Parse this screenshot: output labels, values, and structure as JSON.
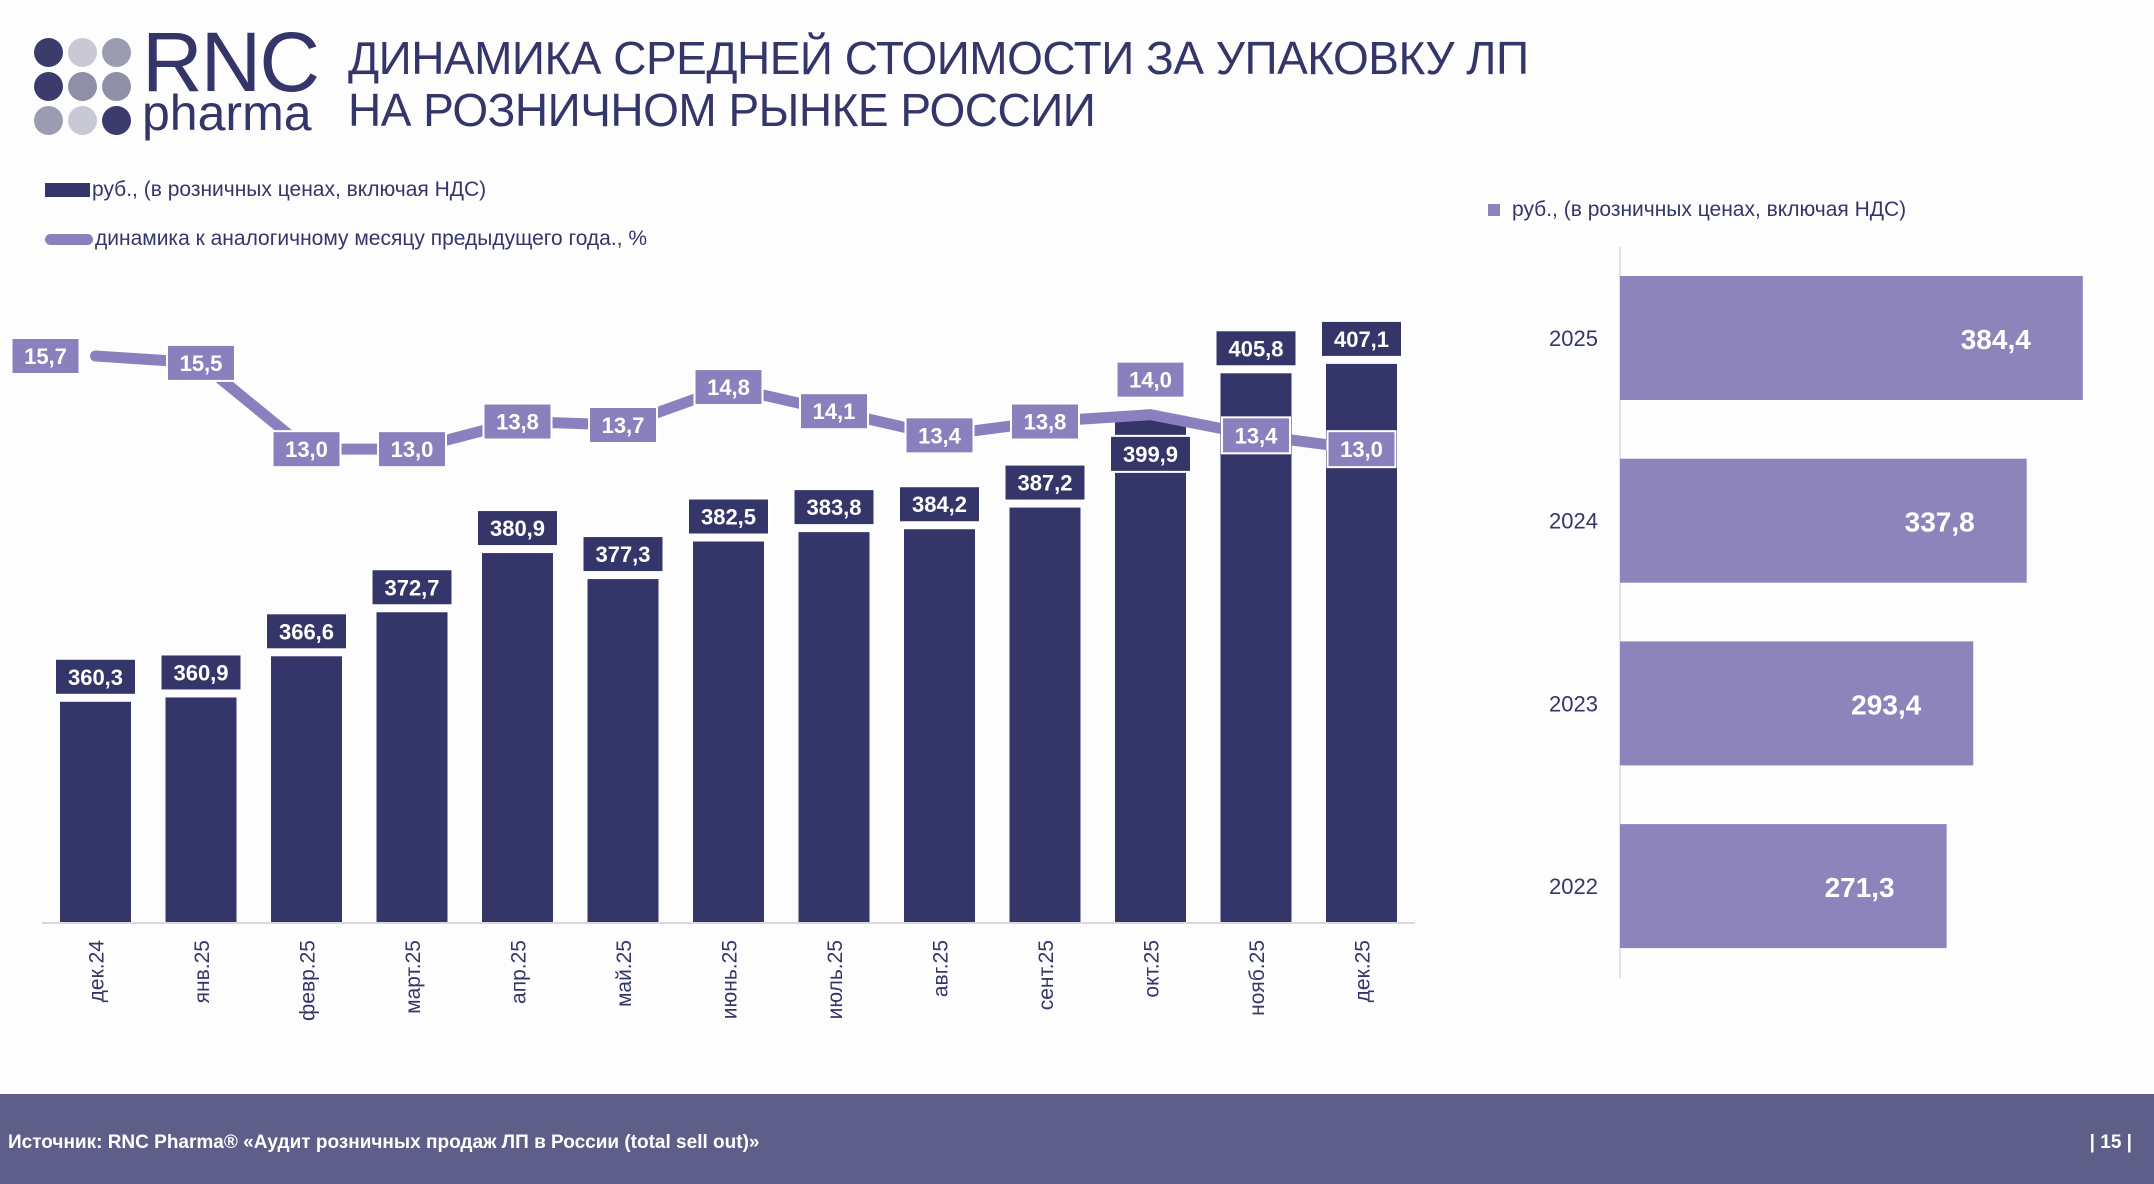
{
  "logo": {
    "text_main": "RNC",
    "text_sub": "pharma"
  },
  "header": {
    "title_line1": "ДИНАМИКА СРЕДНЕЙ СТОИМОСТИ ЗА УПАКОВКУ ЛП",
    "title_line2": "НА РОЗНИЧНОМ РЫНКЕ РОССИИ"
  },
  "colors": {
    "bar": "#34366a",
    "line": "#8b80bd",
    "annual_bar": "#8d84bb",
    "footer": "#5e5f88"
  },
  "chart_data": [
    {
      "type": "bar+line",
      "categories": [
        "дек.24",
        "янв.25",
        "февр.25",
        "март.25",
        "апр.25",
        "май.25",
        "июнь.25",
        "июль.25",
        "авг.25",
        "сент.25",
        "окт.25",
        "нояб.25",
        "дек.25"
      ],
      "series": [
        {
          "name": "руб., (в розничных ценах, включая НДС)",
          "type": "bar",
          "values": [
            360.3,
            360.9,
            366.6,
            372.7,
            380.9,
            377.3,
            382.5,
            383.8,
            384.2,
            387.2,
            399.9,
            405.8,
            407.1
          ],
          "labels": [
            "360,3",
            "360,9",
            "366,6",
            "372,7",
            "380,9",
            "377,3",
            "382,5",
            "383,8",
            "384,2",
            "387,2",
            "399,9",
            "405,8",
            "407,1"
          ]
        },
        {
          "name": "динамика к аналогичному месяцу предыдущего года., %",
          "type": "line",
          "values": [
            15.7,
            15.5,
            13.0,
            13.0,
            13.8,
            13.7,
            14.8,
            14.1,
            13.4,
            13.8,
            14.0,
            13.4,
            13.0
          ],
          "labels": [
            "15,7",
            "15,5",
            "13,0",
            "13,0",
            "13,8",
            "13,7",
            "14,8",
            "14,1",
            "13,4",
            "13,8",
            "14,0",
            "13,4",
            "13,0"
          ]
        }
      ],
      "legend": "top-left",
      "grid": false
    },
    {
      "type": "bar",
      "orientation": "horizontal",
      "legend_label": "руб., (в розничных ценах, включая НДС)",
      "categories": [
        "2025",
        "2024",
        "2023",
        "2022"
      ],
      "values": [
        384.4,
        337.8,
        293.4,
        271.3
      ],
      "labels": [
        "384,4",
        "337,8",
        "293,4",
        "271,3"
      ],
      "xlim": [
        0,
        400
      ]
    }
  ],
  "footer": {
    "source": "Источник: RNC Pharma® «Аудит розничных продаж ЛП в России (total sell out)»",
    "page": "| 15 |"
  }
}
